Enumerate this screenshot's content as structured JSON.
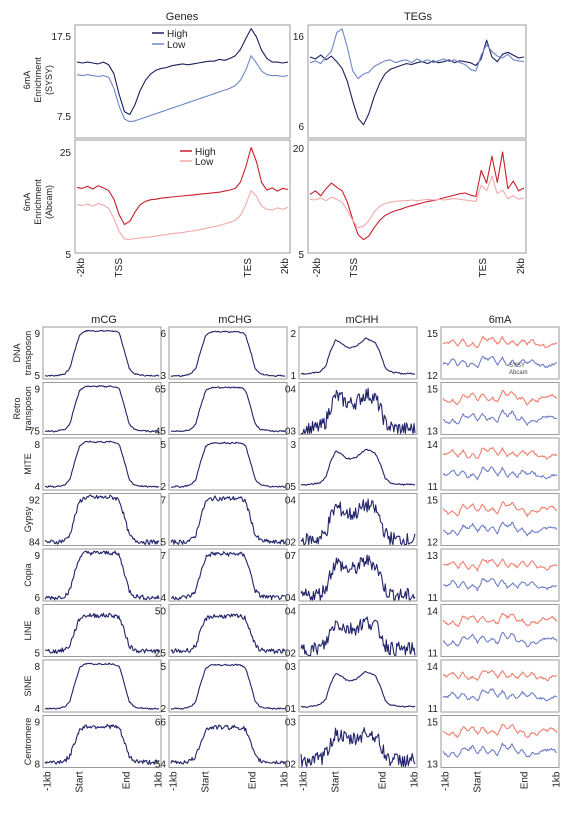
{
  "colors": {
    "high_blue": "#1c1f5a",
    "low_blue": "#6f86c8",
    "high_red": "#c8202c",
    "low_red": "#f0aaa8",
    "meth_line": "#23246b",
    "sysy": "#f08070",
    "abcam": "#7080c8"
  },
  "top": {
    "column_titles": [
      "Genes",
      "TEGs"
    ],
    "row_labels": [
      {
        "line1": "6mA",
        "line2": "Enrichment",
        "line3": "(SYSY)"
      },
      {
        "line1": "6mA",
        "line2": "Enrichment",
        "line3": "(Abcam)"
      }
    ],
    "legend_labels": [
      "High",
      "Low"
    ],
    "x_tick_labels": [
      "-2kb",
      "TSS",
      "TES",
      "2kb"
    ],
    "y_ticks": {
      "genes_sysy": [
        "17.5",
        "7.5"
      ],
      "tegs_sysy": [
        "16",
        "6"
      ],
      "genes_abcam": [
        "25",
        "5"
      ],
      "tegs_abcam": [
        "20",
        "5"
      ]
    }
  },
  "bottom": {
    "column_titles": [
      "mCG",
      "mCHG",
      "mCHH",
      "6mA"
    ],
    "row_labels": [
      {
        "line1": "DNA",
        "line2": "transposon"
      },
      {
        "line1": "Retro",
        "line2": "transposon"
      },
      {
        "line1": "MITE",
        "line2": ""
      },
      {
        "line1": "Gypsy",
        "line2": ""
      },
      {
        "line1": "Copia",
        "line2": ""
      },
      {
        "line1": "LINE",
        "line2": ""
      },
      {
        "line1": "SINE",
        "line2": ""
      },
      {
        "line1": "Centromere",
        "line2": ""
      }
    ],
    "x_tick_labels": [
      "-1kb",
      "Start",
      "End",
      "1kb"
    ],
    "legend_labels": [
      "SYSY",
      "Abcam"
    ],
    "y_ticks": [
      [
        [
          "9",
          "5"
        ],
        [
          "6",
          "3"
        ],
        [
          "2",
          "1"
        ],
        [
          "15",
          "12"
        ]
      ],
      [
        [
          "9",
          "75"
        ],
        [
          "65",
          "45"
        ],
        [
          "04",
          "03"
        ],
        [
          "15",
          "13"
        ]
      ],
      [
        [
          "8",
          "4"
        ],
        [
          "5",
          "2"
        ],
        [
          "3",
          "05"
        ],
        [
          "14",
          "11"
        ]
      ],
      [
        [
          "92",
          "84"
        ],
        [
          "7",
          "5"
        ],
        [
          "04",
          "02"
        ],
        [
          "15",
          "12"
        ]
      ],
      [
        [
          "9",
          "6"
        ],
        [
          "7",
          "4"
        ],
        [
          "07",
          "04"
        ],
        [
          "13",
          "11"
        ]
      ],
      [
        [
          "8",
          "5"
        ],
        [
          "50",
          "25"
        ],
        [
          "04",
          "02"
        ],
        [
          "14",
          "11"
        ]
      ],
      [
        [
          "8",
          "4"
        ],
        [
          "5",
          "2"
        ],
        [
          "03",
          "01"
        ],
        [
          "14",
          "11"
        ]
      ],
      [
        [
          "9",
          "8"
        ],
        [
          "66",
          "54"
        ],
        [
          "03",
          "02"
        ],
        [
          "15",
          "13"
        ]
      ]
    ]
  },
  "chart_data": [
    {
      "type": "line",
      "panel": "genes_sysy",
      "x": "-2kb..TSS..TES..2kb (metagene)",
      "ylim": [
        6.5,
        19
      ],
      "series": [
        {
          "name": "High",
          "values": [
            14.9,
            14.8,
            14.9,
            14.8,
            14.7,
            14.9,
            14.6,
            13.6,
            11.3,
            9.4,
            9.1,
            10.2,
            11.8,
            12.9,
            13.6,
            14.0,
            14.2,
            14.3,
            14.5,
            14.6,
            14.7,
            14.6,
            14.7,
            14.8,
            14.9,
            15.0,
            15.0,
            15.2,
            15.1,
            15.3,
            15.6,
            16.3,
            17.5,
            18.6,
            17.7,
            16.2,
            15.3,
            14.9,
            14.9,
            14.8,
            14.9
          ]
        },
        {
          "name": "Low",
          "values": [
            13.5,
            13.4,
            13.5,
            13.4,
            13.3,
            13.4,
            13.2,
            12.0,
            10.0,
            8.6,
            8.3,
            8.4,
            8.6,
            8.8,
            9.0,
            9.2,
            9.4,
            9.6,
            9.8,
            10.0,
            10.2,
            10.4,
            10.6,
            10.8,
            11.0,
            11.2,
            11.4,
            11.6,
            11.8,
            12.0,
            12.3,
            12.9,
            14.0,
            15.6,
            14.8,
            13.9,
            13.5,
            13.4,
            13.4,
            13.3,
            13.4
          ]
        }
      ]
    },
    {
      "type": "line",
      "panel": "tegs_sysy",
      "x": "-2kb..TSS..TES..2kb (metagene)",
      "ylim": [
        5,
        17
      ],
      "series": [
        {
          "name": "High",
          "values": [
            13.6,
            13.4,
            13.8,
            13.3,
            13.7,
            13.1,
            12.4,
            11.0,
            8.9,
            7.1,
            6.4,
            7.6,
            9.4,
            10.8,
            11.8,
            12.3,
            12.5,
            12.7,
            12.9,
            12.8,
            13.0,
            13.1,
            12.9,
            13.2,
            13.0,
            13.1,
            13.3,
            13.0,
            13.2,
            13.1,
            13.0,
            12.7,
            13.4,
            15.4,
            13.6,
            13.1,
            13.9,
            14.1,
            13.8,
            13.5,
            13.6
          ]
        },
        {
          "name": "Low",
          "values": [
            13.0,
            13.2,
            12.9,
            13.6,
            14.2,
            16.2,
            16.6,
            14.6,
            12.1,
            11.3,
            11.8,
            12.0,
            12.6,
            12.9,
            13.2,
            13.3,
            13.0,
            13.2,
            13.3,
            13.0,
            13.4,
            13.1,
            13.3,
            13.0,
            13.2,
            13.4,
            13.1,
            13.3,
            13.0,
            12.8,
            12.3,
            12.1,
            13.8,
            14.9,
            14.2,
            13.7,
            13.5,
            13.9,
            13.3,
            13.2,
            13.1
          ]
        }
      ]
    },
    {
      "type": "line",
      "panel": "genes_abcam",
      "x": "-2kb..TSS..TES..2kb (metagene)",
      "ylim": [
        5,
        26
      ],
      "series": [
        {
          "name": "High",
          "values": [
            17.2,
            17.0,
            17.4,
            16.9,
            17.5,
            17.1,
            16.6,
            15.0,
            12.1,
            10.3,
            10.9,
            12.6,
            14.0,
            14.6,
            14.9,
            15.0,
            15.2,
            15.3,
            15.4,
            15.5,
            15.6,
            15.7,
            15.8,
            15.9,
            16.0,
            16.1,
            16.2,
            16.3,
            16.5,
            16.7,
            17.0,
            18.2,
            21.0,
            24.6,
            22.0,
            18.1,
            16.7,
            17.1,
            16.5,
            17.0,
            16.8
          ]
        },
        {
          "name": "Low",
          "values": [
            14.0,
            13.8,
            14.1,
            13.7,
            14.2,
            13.9,
            13.3,
            11.4,
            9.0,
            7.6,
            7.5,
            7.7,
            7.8,
            7.9,
            8.0,
            8.2,
            8.3,
            8.4,
            8.6,
            8.7,
            8.8,
            9.0,
            9.1,
            9.3,
            9.5,
            9.7,
            9.9,
            10.1,
            10.4,
            10.7,
            11.1,
            12.0,
            14.0,
            16.6,
            15.6,
            13.7,
            13.1,
            13.0,
            13.4,
            13.1,
            13.5
          ]
        }
      ]
    },
    {
      "type": "line",
      "panel": "tegs_abcam",
      "x": "-2kb..TSS..TES..2kb (metagene)",
      "ylim": [
        5,
        21
      ],
      "series": [
        {
          "name": "High",
          "values": [
            13.3,
            13.8,
            13.1,
            14.1,
            14.9,
            14.3,
            13.8,
            12.2,
            9.7,
            7.6,
            6.9,
            7.4,
            8.6,
            9.6,
            10.3,
            10.7,
            11.0,
            11.2,
            11.5,
            11.7,
            11.9,
            12.1,
            12.3,
            12.4,
            12.6,
            12.8,
            13.0,
            13.2,
            13.4,
            13.5,
            13.2,
            13.0,
            16.7,
            14.9,
            18.7,
            15.0,
            19.3,
            14.1,
            15.2,
            13.8,
            14.2
          ]
        },
        {
          "name": "Low",
          "values": [
            12.6,
            12.5,
            12.8,
            12.4,
            12.9,
            12.6,
            12.2,
            11.0,
            9.6,
            8.6,
            8.8,
            9.6,
            10.8,
            11.6,
            12.0,
            12.2,
            12.3,
            12.4,
            12.4,
            12.5,
            12.4,
            12.5,
            12.6,
            12.5,
            12.6,
            12.5,
            12.6,
            12.7,
            12.6,
            12.5,
            12.4,
            12.3,
            14.6,
            13.8,
            15.9,
            13.4,
            13.9,
            12.7,
            13.1,
            12.6,
            12.8
          ]
        }
      ]
    },
    {
      "type": "line",
      "panel": "te_metaprofiles",
      "x": "-1kb..Start..End..1kb",
      "description_profiles": {
        "mCG": [
          0.06,
          0.07,
          0.06,
          0.08,
          0.1,
          0.2,
          0.55,
          0.85,
          0.92,
          0.93,
          0.92,
          0.93,
          0.92,
          0.93,
          0.92,
          0.88,
          0.55,
          0.2,
          0.1,
          0.08,
          0.07,
          0.06,
          0.07,
          0.06
        ],
        "mCHG": [
          0.06,
          0.07,
          0.06,
          0.08,
          0.1,
          0.2,
          0.55,
          0.84,
          0.9,
          0.91,
          0.9,
          0.91,
          0.9,
          0.91,
          0.9,
          0.86,
          0.55,
          0.2,
          0.1,
          0.08,
          0.07,
          0.06,
          0.07,
          0.06
        ],
        "mCHH": [
          0.1,
          0.1,
          0.11,
          0.12,
          0.15,
          0.25,
          0.55,
          0.75,
          0.7,
          0.62,
          0.6,
          0.62,
          0.7,
          0.78,
          0.75,
          0.7,
          0.5,
          0.22,
          0.14,
          0.12,
          0.11,
          0.1,
          0.11,
          0.1
        ]
      },
      "series": [
        {
          "name": "SYSY",
          "values": [
            0.7,
            0.65,
            0.72,
            0.6,
            0.78,
            0.66,
            0.74,
            0.62,
            0.8,
            0.7,
            0.76,
            0.64,
            0.82,
            0.7,
            0.78,
            0.66,
            0.74,
            0.62,
            0.72,
            0.64,
            0.7,
            0.66,
            0.72,
            0.68
          ]
        },
        {
          "name": "Abcam",
          "values": [
            0.3,
            0.25,
            0.34,
            0.22,
            0.38,
            0.28,
            0.36,
            0.24,
            0.42,
            0.32,
            0.4,
            0.26,
            0.44,
            0.3,
            0.4,
            0.26,
            0.36,
            0.24,
            0.32,
            0.26,
            0.3,
            0.28,
            0.32,
            0.3
          ]
        }
      ]
    }
  ]
}
